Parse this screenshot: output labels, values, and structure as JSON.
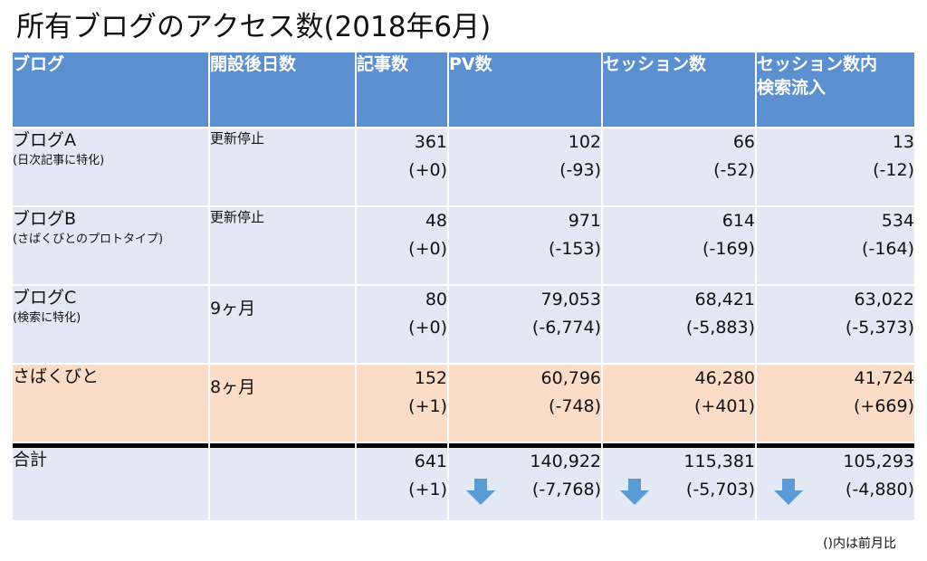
{
  "title": "所有ブログのアクセス数(2018年6月)",
  "table": {
    "headers": {
      "blog": "ブログ",
      "days": "開設後日数",
      "articles": "記事数",
      "pv": "PV数",
      "sessions": "セッション数",
      "search_sessions_line1": "セッション数内",
      "search_sessions_line2": "検索流入"
    },
    "rows": [
      {
        "name": "ブログA",
        "note": "(日次記事に特化)",
        "status": "更新停止",
        "articles": "361",
        "articles_diff": "(+0)",
        "pv": "102",
        "pv_diff": "(-93)",
        "sessions": "66",
        "sessions_diff": "(-52)",
        "search": "13",
        "search_diff": "(-12)"
      },
      {
        "name": "ブログB",
        "note": "(さばくびとのプロトタイプ)",
        "status": "更新停止",
        "articles": "48",
        "articles_diff": "(+0)",
        "pv": "971",
        "pv_diff": "(-153)",
        "sessions": "614",
        "sessions_diff": "(-169)",
        "search": "534",
        "search_diff": "(-164)"
      },
      {
        "name": "ブログC",
        "note": "(検索に特化)",
        "status": "9ヶ月",
        "articles": "80",
        "articles_diff": "(+0)",
        "pv": "79,053",
        "pv_diff": "(-6,774)",
        "sessions": "68,421",
        "sessions_diff": "(-5,883)",
        "search": "63,022",
        "search_diff": "(-5,373)"
      },
      {
        "name": "さばくびと",
        "note": "",
        "status": "8ヶ月",
        "articles": "152",
        "articles_diff": "(+1)",
        "pv": "60,796",
        "pv_diff": "(-748)",
        "sessions": "46,280",
        "sessions_diff": "(+401)",
        "search": "41,724",
        "search_diff": "(+669)"
      }
    ],
    "total": {
      "name": "合計",
      "status": "",
      "articles": "641",
      "articles_diff": "(+1)",
      "pv": "140,922",
      "pv_diff": "(-7,768)",
      "sessions": "115,381",
      "sessions_diff": "(-5,703)",
      "search": "105,293",
      "search_diff": "(-4,880)"
    }
  },
  "arrow_icon": "down-arrow-icon",
  "colors": {
    "header": "#5b8fd0",
    "row": "#e2e9f4",
    "highlight_row": "#fbdcc6",
    "arrow": "#5b9bd5"
  },
  "footnote": "()内は前月比"
}
